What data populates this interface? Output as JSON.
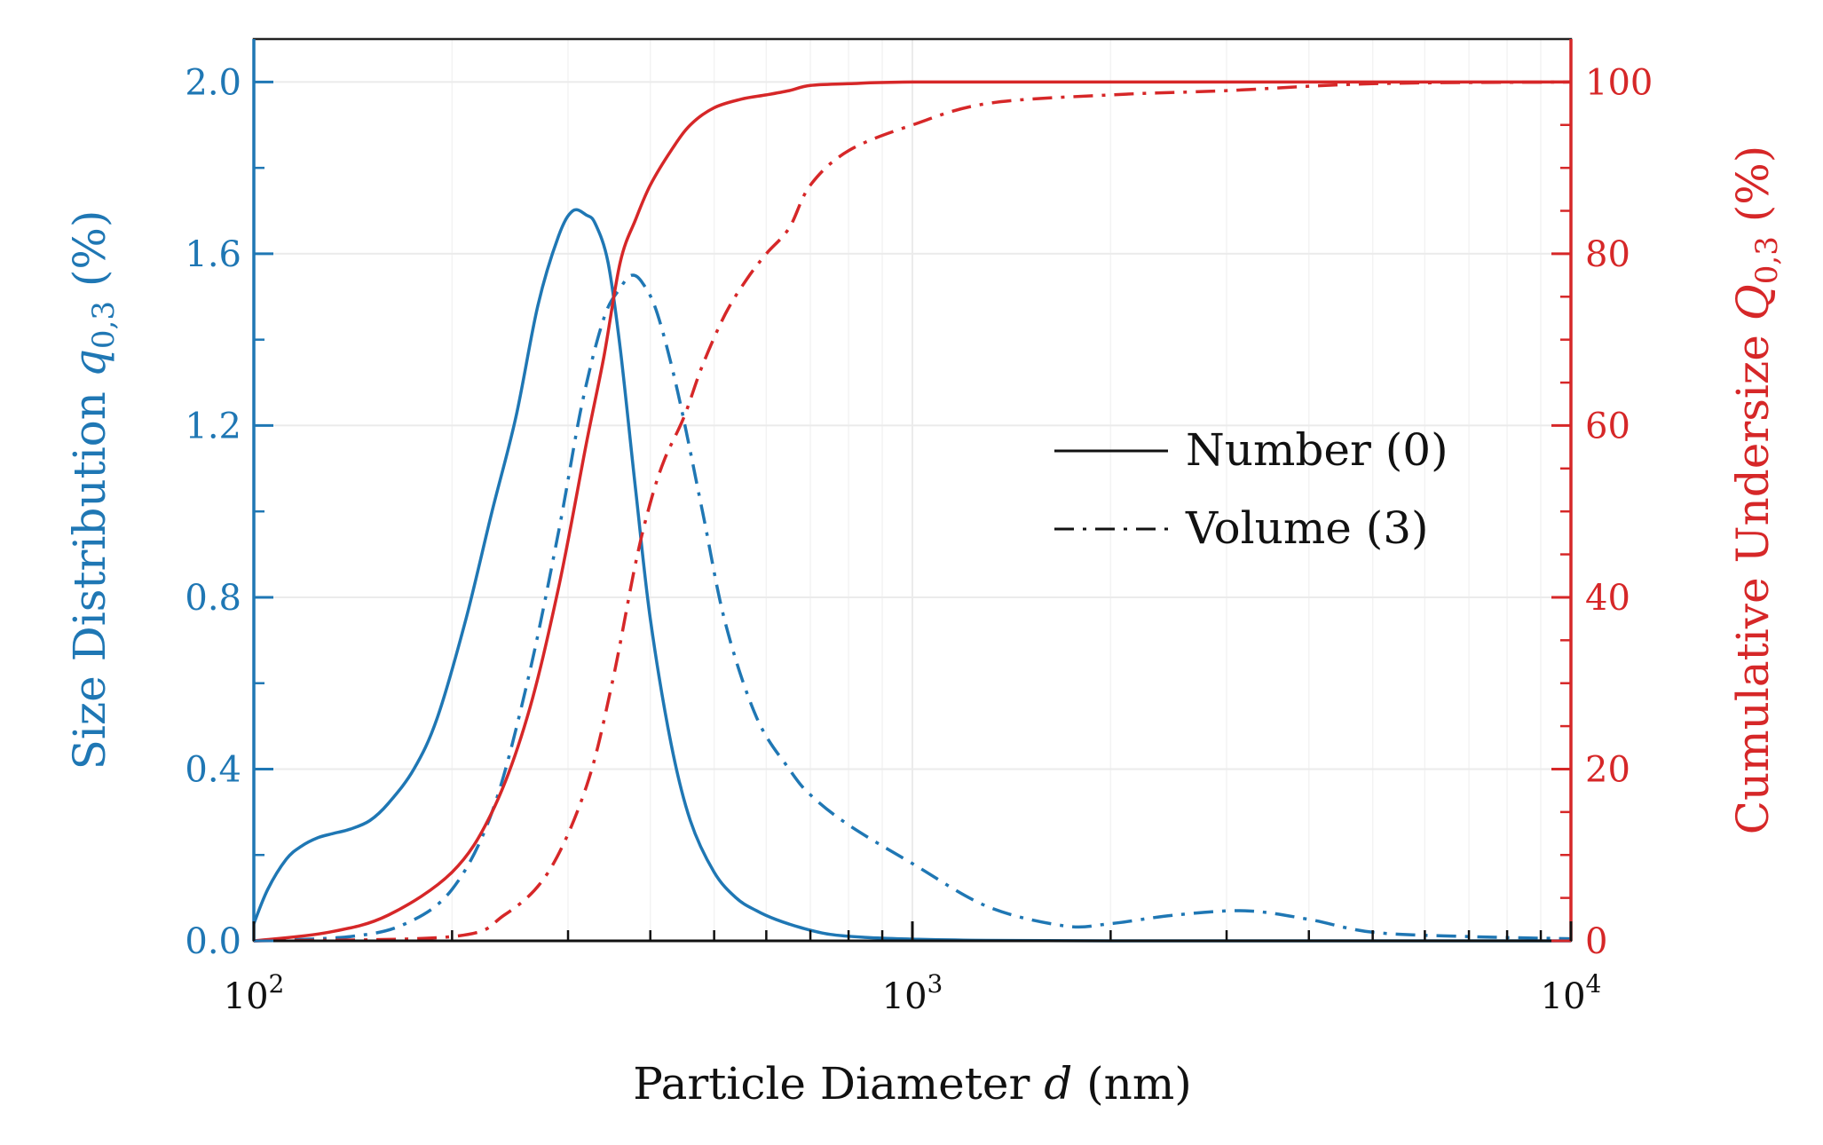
{
  "chart_data": {
    "type": "line",
    "xscale": "log",
    "xlim": [
      100,
      10000
    ],
    "xticks": [
      {
        "base": "10",
        "exp": "2"
      },
      {
        "base": "10",
        "exp": "3"
      },
      {
        "base": "10",
        "exp": "4"
      }
    ],
    "xlabel": {
      "prefix": "Particle Diameter ",
      "var": "d",
      "suffix": " (nm)"
    },
    "left_axis": {
      "ylim": [
        0,
        2.1
      ],
      "ticks": [
        "0.0",
        "0.4",
        "0.8",
        "1.2",
        "1.6",
        "2.0"
      ],
      "label": {
        "prefix": "Size Distribution ",
        "var": "q",
        "sub": "0,3",
        "suffix": " (%)"
      },
      "color": "#1f77b4"
    },
    "right_axis": {
      "ylim": [
        0,
        105
      ],
      "ticks": [
        "0",
        "20",
        "40",
        "60",
        "80",
        "100"
      ],
      "label": {
        "prefix": "Cumulative Undersize ",
        "var": "Q",
        "sub": "0,3",
        "suffix": " (%)"
      },
      "color": "#d62728"
    },
    "legend": {
      "position": "center-right",
      "entries": [
        {
          "label": "Number (0)",
          "style": "solid"
        },
        {
          "label": "Volume (3)",
          "style": "dashdot"
        }
      ]
    },
    "series": [
      {
        "name": "q0 Number density",
        "axis": "left",
        "style": "solid",
        "color": "#1f77b4",
        "x": [
          100,
          105,
          112,
          118,
          125,
          132,
          140,
          150,
          160,
          175,
          190,
          210,
          230,
          250,
          270,
          290,
          305,
          320,
          330,
          345,
          360,
          380,
          400,
          430,
          460,
          500,
          540,
          580,
          620,
          680,
          750,
          850,
          1000,
          1300,
          2000,
          4000,
          10000
        ],
        "values": [
          0.04,
          0.12,
          0.19,
          0.22,
          0.24,
          0.25,
          0.26,
          0.28,
          0.32,
          0.4,
          0.52,
          0.75,
          1.0,
          1.22,
          1.48,
          1.64,
          1.7,
          1.69,
          1.67,
          1.58,
          1.38,
          1.05,
          0.75,
          0.46,
          0.28,
          0.16,
          0.1,
          0.07,
          0.05,
          0.03,
          0.015,
          0.008,
          0.004,
          0.001,
          0.0,
          0.0,
          0.0
        ]
      },
      {
        "name": "q3 Volume density",
        "axis": "left",
        "style": "dashdot",
        "color": "#1f77b4",
        "x": [
          100,
          140,
          170,
          200,
          230,
          260,
          290,
          315,
          340,
          360,
          375,
          390,
          410,
          440,
          480,
          520,
          580,
          650,
          700,
          800,
          1000,
          1300,
          1700,
          2000,
          2500,
          3200,
          4000,
          5000,
          7000,
          10000
        ],
        "values": [
          0.0,
          0.01,
          0.04,
          0.12,
          0.3,
          0.6,
          0.95,
          1.25,
          1.45,
          1.52,
          1.55,
          1.53,
          1.46,
          1.28,
          1.0,
          0.74,
          0.52,
          0.4,
          0.34,
          0.27,
          0.18,
          0.08,
          0.035,
          0.04,
          0.06,
          0.07,
          0.05,
          0.02,
          0.01,
          0.005
        ]
      },
      {
        "name": "Q0 Number cumulative",
        "axis": "right",
        "style": "solid",
        "color": "#d62728",
        "x": [
          100,
          130,
          160,
          200,
          230,
          260,
          290,
          320,
          340,
          360,
          380,
          400,
          430,
          460,
          500,
          550,
          600,
          650,
          700,
          800,
          1000,
          2000,
          10000
        ],
        "values": [
          0,
          1,
          3,
          8,
          15,
          26,
          41,
          58,
          68,
          79,
          84,
          88,
          92,
          95,
          97,
          98,
          98.5,
          99,
          99.6,
          99.8,
          100,
          100,
          100
        ]
      },
      {
        "name": "Q3 Volume cumulative",
        "axis": "right",
        "style": "dashdot",
        "color": "#d62728",
        "x": [
          100,
          200,
          240,
          280,
          320,
          350,
          380,
          400,
          420,
          450,
          480,
          520,
          560,
          600,
          650,
          700,
          800,
          1000,
          1300,
          2000,
          3000,
          5000,
          10000
        ],
        "values": [
          0,
          0.5,
          3,
          8,
          18,
          30,
          44,
          51,
          56,
          61,
          67,
          73,
          77,
          80,
          83,
          88,
          92,
          95,
          97.5,
          98.5,
          99,
          99.8,
          100
        ]
      }
    ]
  }
}
